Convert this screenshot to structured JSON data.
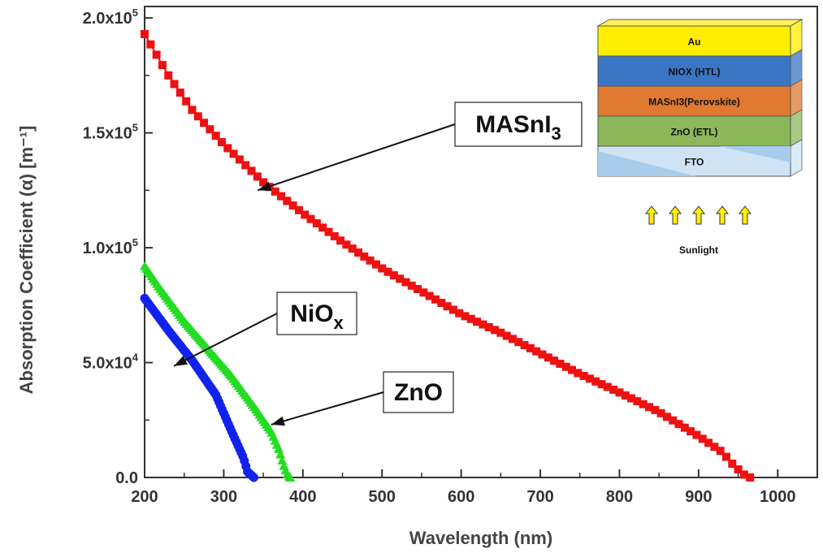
{
  "chart_data": {
    "type": "scatter",
    "xlabel": "Wavelength (nm)",
    "ylabel": "Absorption Coefficient (α) [m⁻¹]",
    "xlim": [
      200,
      1050
    ],
    "ylim": [
      0,
      205000
    ],
    "x_ticks": [
      "200",
      "300",
      "400",
      "500",
      "600",
      "700",
      "800",
      "900",
      "1000"
    ],
    "y_ticks": [
      {
        "base": "0.0",
        "exp": ""
      },
      {
        "base": "5.0x10",
        "exp": "4"
      },
      {
        "base": "1.0x10",
        "exp": "5"
      },
      {
        "base": "1.5x10",
        "exp": "5"
      },
      {
        "base": "2.0x10",
        "exp": "5"
      }
    ],
    "series": [
      {
        "name": "MASnI3",
        "color": "#ee1111",
        "marker": "square",
        "anchors": [
          [
            200,
            193000
          ],
          [
            230,
            175000
          ],
          [
            260,
            160000
          ],
          [
            300,
            145000
          ],
          [
            350,
            128500
          ],
          [
            400,
            115000
          ],
          [
            450,
            102500
          ],
          [
            500,
            91000
          ],
          [
            550,
            81000
          ],
          [
            600,
            71000
          ],
          [
            650,
            63000
          ],
          [
            700,
            54000
          ],
          [
            750,
            45000
          ],
          [
            800,
            37000
          ],
          [
            850,
            28500
          ],
          [
            900,
            18000
          ],
          [
            930,
            11000
          ],
          [
            945,
            5000
          ],
          [
            960,
            500
          ],
          [
            965,
            0
          ]
        ],
        "step": 7.5
      },
      {
        "name": "ZnO",
        "color": "#22dd22",
        "marker": "triangle",
        "anchors": [
          [
            200,
            92000
          ],
          [
            220,
            82000
          ],
          [
            250,
            68000
          ],
          [
            280,
            56000
          ],
          [
            310,
            44000
          ],
          [
            340,
            30000
          ],
          [
            360,
            20000
          ],
          [
            370,
            12000
          ],
          [
            375,
            6000
          ],
          [
            380,
            1500
          ],
          [
            384,
            0
          ]
        ],
        "step": 2.2
      },
      {
        "name": "NiOx",
        "color": "#1122ee",
        "marker": "circle",
        "anchors": [
          [
            200,
            78000
          ],
          [
            230,
            64000
          ],
          [
            260,
            51000
          ],
          [
            290,
            36000
          ],
          [
            310,
            20000
          ],
          [
            325,
            8500
          ],
          [
            330,
            2500
          ],
          [
            338,
            0
          ]
        ],
        "step": 2.0
      }
    ],
    "annotations": [
      {
        "label": "MASnI",
        "sub": "3",
        "points_to": [
          343,
          125000
        ]
      },
      {
        "label": "NiO",
        "sub": "x",
        "points_to": [
          237,
          48500
        ]
      },
      {
        "label": "ZnO",
        "sub": "",
        "points_to": [
          360,
          23000
        ]
      }
    ]
  },
  "inset": {
    "layers": [
      {
        "label": "Au",
        "fill": "#ffee00"
      },
      {
        "label": "NIOX (HTL)",
        "fill": "#3a76c4"
      },
      {
        "label": "MASnI3(Perovskite)",
        "fill": "#e07a30"
      },
      {
        "label": "ZnO (ETL)",
        "fill": "#8db85a"
      },
      {
        "label": "FTO",
        "fill": "#cfe3f5"
      }
    ],
    "sunlight_label": "Sunlight",
    "arrow_color": "#ffee00"
  }
}
